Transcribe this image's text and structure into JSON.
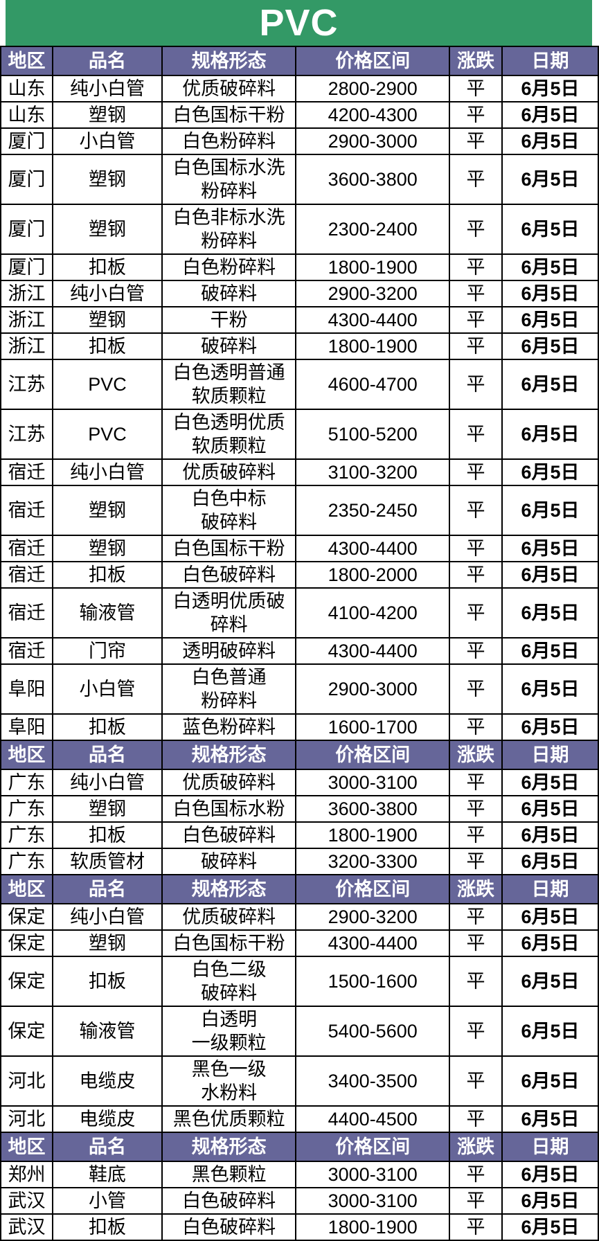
{
  "title": "PVC",
  "colors": {
    "title_bg": "#339966",
    "header_bg": "#666699",
    "date_text": "#fe0000",
    "body_text": "#000000",
    "border": "#000000"
  },
  "columns": {
    "region": "地区",
    "product": "品名",
    "spec": "规格形态",
    "price": "价格区间",
    "change": "涨跌",
    "date": "日期"
  },
  "sections": [
    {
      "rows": [
        {
          "region": "山东",
          "product": "纯小白管",
          "spec": "优质破碎料",
          "price": "2800-2900",
          "change": "平",
          "date": "6月5日"
        },
        {
          "region": "山东",
          "product": "塑钢",
          "spec": "白色国标干粉",
          "price": "4200-4300",
          "change": "平",
          "date": "6月5日"
        },
        {
          "region": "厦门",
          "product": "小白管",
          "spec": "白色粉碎料",
          "price": "2900-3000",
          "change": "平",
          "date": "6月5日"
        },
        {
          "region": "厦门",
          "product": "塑钢",
          "spec": "白色国标水洗\n粉碎料",
          "price": "3600-3800",
          "change": "平",
          "date": "6月5日"
        },
        {
          "region": "厦门",
          "product": "塑钢",
          "spec": "白色非标水洗\n粉碎料",
          "price": "2300-2400",
          "change": "平",
          "date": "6月5日"
        },
        {
          "region": "厦门",
          "product": "扣板",
          "spec": "白色粉碎料",
          "price": "1800-1900",
          "change": "平",
          "date": "6月5日"
        },
        {
          "region": "浙江",
          "product": "纯小白管",
          "spec": "破碎料",
          "price": "2900-3200",
          "change": "平",
          "date": "6月5日"
        },
        {
          "region": "浙江",
          "product": "塑钢",
          "spec": "干粉",
          "price": "4300-4400",
          "change": "平",
          "date": "6月5日"
        },
        {
          "region": "浙江",
          "product": "扣板",
          "spec": "破碎料",
          "price": "1800-1900",
          "change": "平",
          "date": "6月5日"
        },
        {
          "region": "江苏",
          "product": "PVC",
          "spec": "白色透明普通\n软质颗粒",
          "price": "4600-4700",
          "change": "平",
          "date": "6月5日"
        },
        {
          "region": "江苏",
          "product": "PVC",
          "spec": "白色透明优质\n软质颗粒",
          "price": "5100-5200",
          "change": "平",
          "date": "6月5日"
        },
        {
          "region": "宿迁",
          "product": "纯小白管",
          "spec": "优质破碎料",
          "price": "3100-3200",
          "change": "平",
          "date": "6月5日"
        },
        {
          "region": "宿迁",
          "product": "塑钢",
          "spec": "白色中标\n破碎料",
          "price": "2350-2450",
          "change": "平",
          "date": "6月5日"
        },
        {
          "region": "宿迁",
          "product": "塑钢",
          "spec": "白色国标干粉",
          "price": "4300-4400",
          "change": "平",
          "date": "6月5日"
        },
        {
          "region": "宿迁",
          "product": "扣板",
          "spec": "白色破碎料",
          "price": "1800-2000",
          "change": "平",
          "date": "6月5日"
        },
        {
          "region": "宿迁",
          "product": "输液管",
          "spec": "白透明优质破\n碎料",
          "price": "4100-4200",
          "change": "平",
          "date": "6月5日"
        },
        {
          "region": "宿迁",
          "product": "门帘",
          "spec": "透明破碎料",
          "price": "4300-4400",
          "change": "平",
          "date": "6月5日"
        },
        {
          "region": "阜阳",
          "product": "小白管",
          "spec": "白色普通\n粉碎料",
          "price": "2900-3000",
          "change": "平",
          "date": "6月5日"
        },
        {
          "region": "阜阳",
          "product": "扣板",
          "spec": "蓝色粉碎料",
          "price": "1600-1700",
          "change": "平",
          "date": "6月5日"
        }
      ]
    },
    {
      "rows": [
        {
          "region": "广东",
          "product": "纯小白管",
          "spec": "优质破碎料",
          "price": "3000-3100",
          "change": "平",
          "date": "6月5日"
        },
        {
          "region": "广东",
          "product": "塑钢",
          "spec": "白色国标水粉",
          "price": "3600-3800",
          "change": "平",
          "date": "6月5日"
        },
        {
          "region": "广东",
          "product": "扣板",
          "spec": "白色破碎料",
          "price": "1800-1900",
          "change": "平",
          "date": "6月5日"
        },
        {
          "region": "广东",
          "product": "软质管材",
          "spec": "破碎料",
          "price": "3200-3300",
          "change": "平",
          "date": "6月5日"
        }
      ]
    },
    {
      "rows": [
        {
          "region": "保定",
          "product": "纯小白管",
          "spec": "优质破碎料",
          "price": "2900-3200",
          "change": "平",
          "date": "6月5日"
        },
        {
          "region": "保定",
          "product": "塑钢",
          "spec": "白色国标干粉",
          "price": "4300-4400",
          "change": "平",
          "date": "6月5日"
        },
        {
          "region": "保定",
          "product": "扣板",
          "spec": "白色二级\n破碎料",
          "price": "1500-1600",
          "change": "平",
          "date": "6月5日"
        },
        {
          "region": "保定",
          "product": "输液管",
          "spec": "白透明\n一级颗粒",
          "price": "5400-5600",
          "change": "平",
          "date": "6月5日"
        },
        {
          "region": "河北",
          "product": "电缆皮",
          "spec": "黑色一级\n水粉料",
          "price": "3400-3500",
          "change": "平",
          "date": "6月5日"
        },
        {
          "region": "河北",
          "product": "电缆皮",
          "spec": "黑色优质颗粒",
          "price": "4400-4500",
          "change": "平",
          "date": "6月5日"
        }
      ]
    },
    {
      "rows": [
        {
          "region": "郑州",
          "product": "鞋底",
          "spec": "黑色颗粒",
          "price": "3000-3100",
          "change": "平",
          "date": "6月5日"
        },
        {
          "region": "武汉",
          "product": "小管",
          "spec": "白色破碎料",
          "price": "3000-3100",
          "change": "平",
          "date": "6月5日"
        },
        {
          "region": "武汉",
          "product": "扣板",
          "spec": "白色破碎料",
          "price": "1800-1900",
          "change": "平",
          "date": "6月5日"
        }
      ]
    }
  ]
}
